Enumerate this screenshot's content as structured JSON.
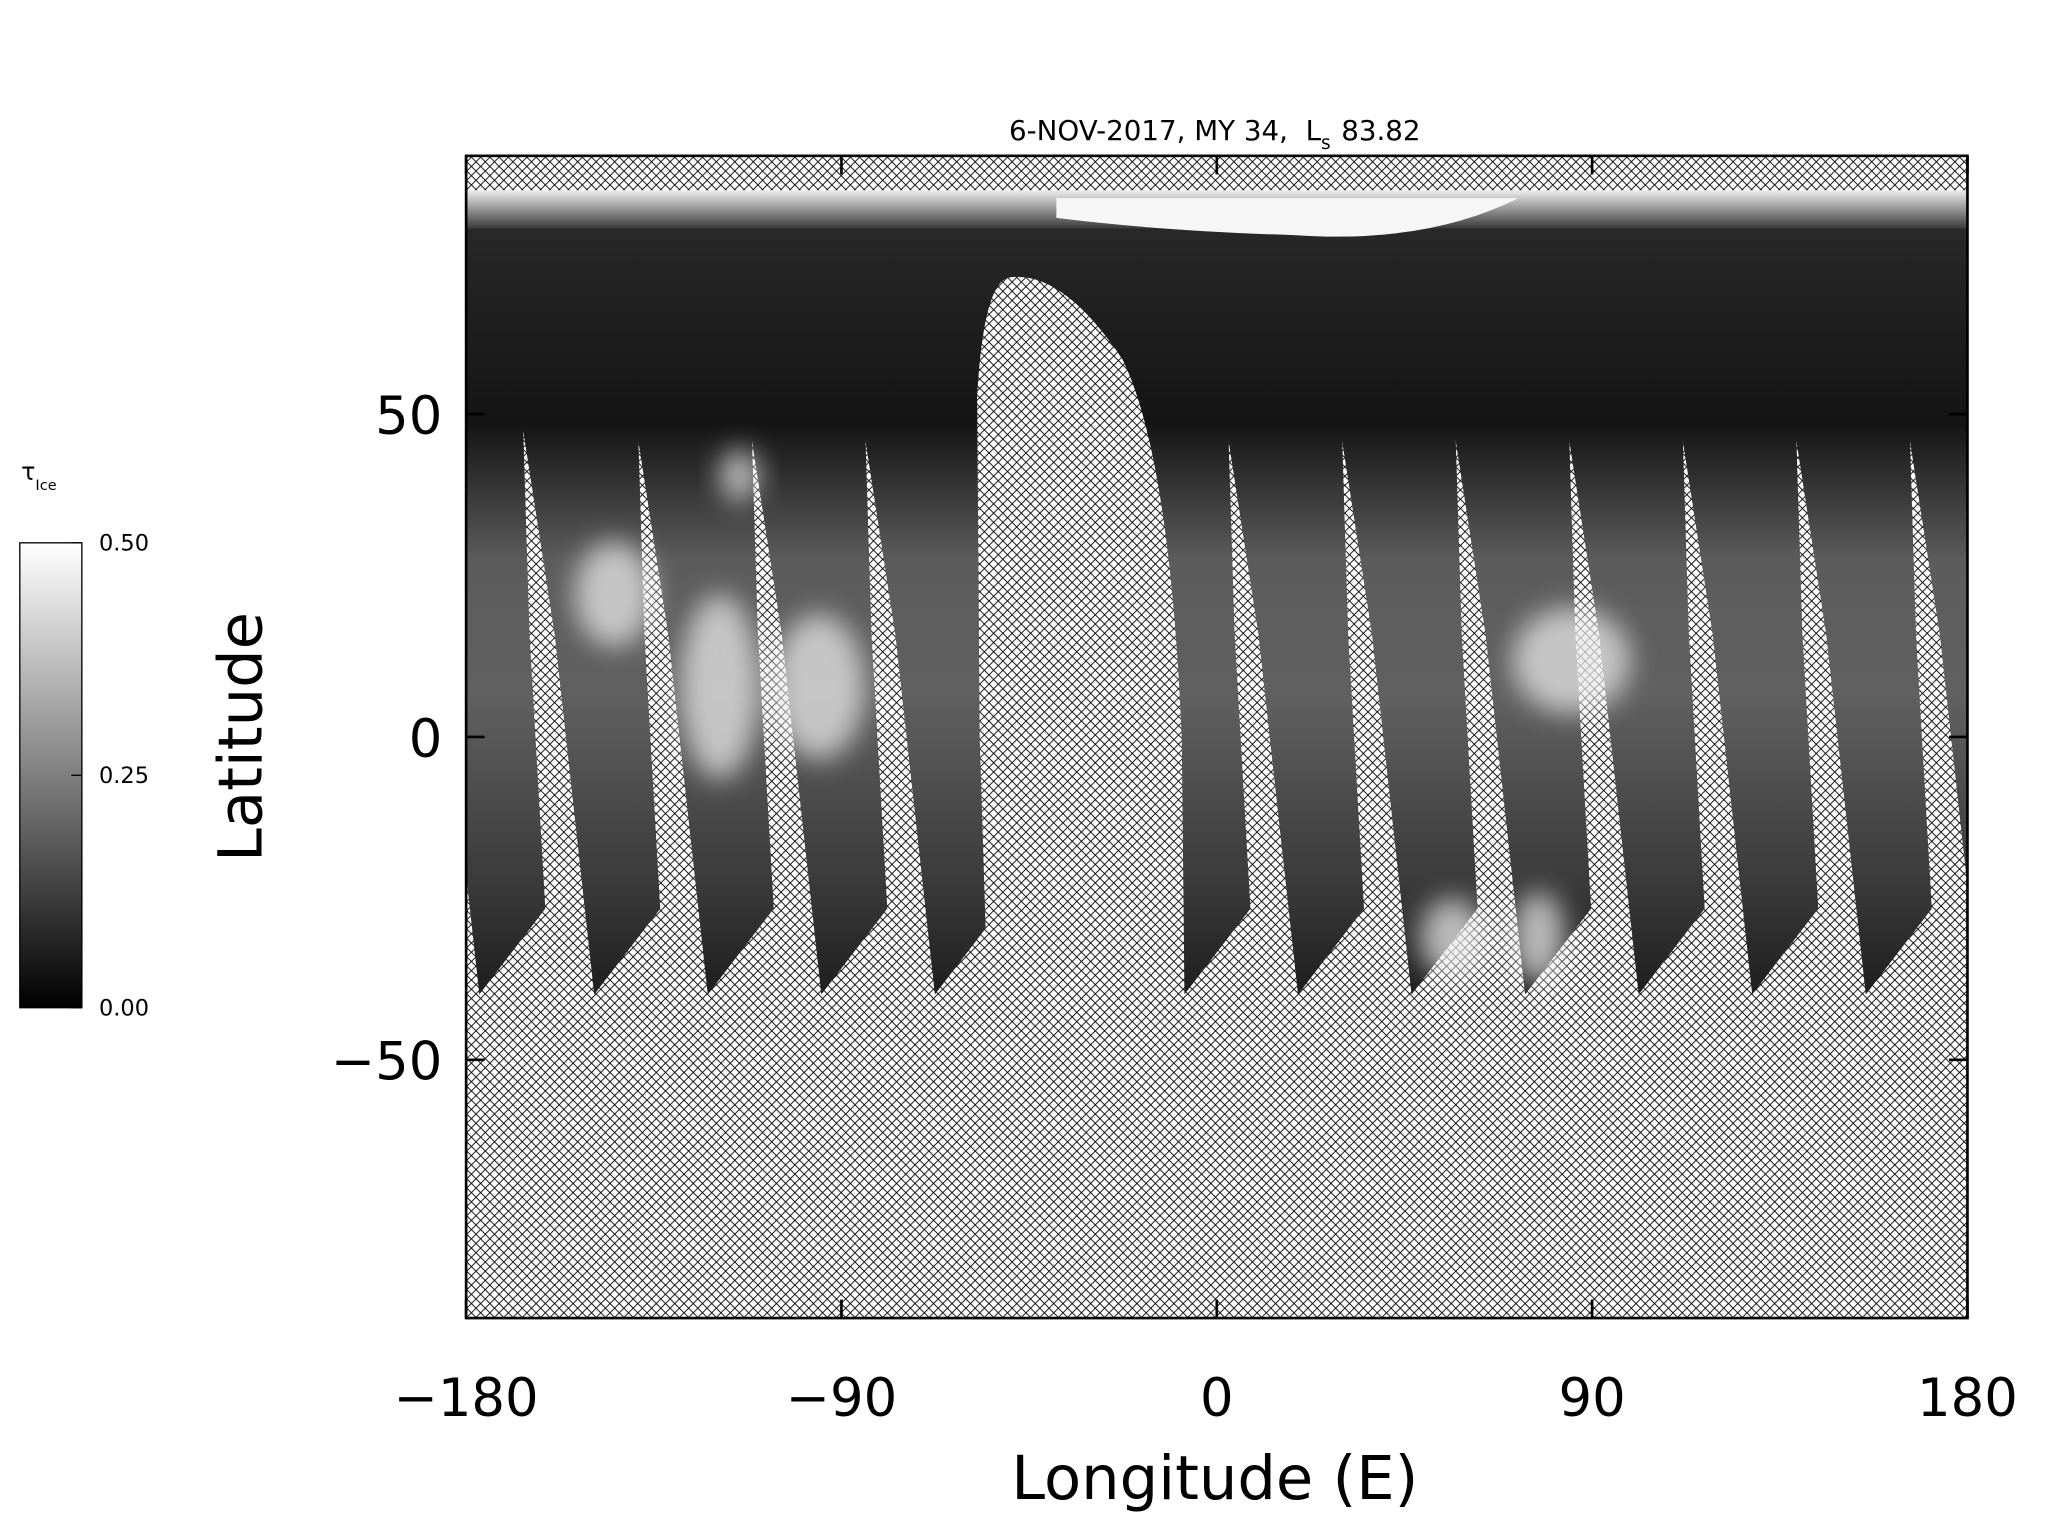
{
  "chart_data": {
    "type": "map",
    "title": "6-NOV-2017, MY 34,  L",
    "title_subscript": "s",
    "title_suffix": "83.82",
    "xlabel": "Longitude (E)",
    "ylabel": "Latitude",
    "xlim": [
      -180,
      180
    ],
    "ylim": [
      -90,
      90
    ],
    "xticks": [
      {
        "value": -180,
        "label": "−180"
      },
      {
        "value": -90,
        "label": "−90"
      },
      0,
      90,
      180
    ],
    "yticks": [
      {
        "value": -50,
        "label": "−50"
      },
      0,
      50
    ],
    "grid": false,
    "colorbar": {
      "label": "τ",
      "label_subscript": "Ice",
      "clim": [
        0,
        0.5
      ],
      "colors": [
        "#000000",
        "#ffffff"
      ],
      "ticks": [
        {
          "value": 0,
          "label": "0.00"
        },
        {
          "value": 0.25,
          "label": "0.25"
        },
        {
          "value": 0.5,
          "label": "0.50"
        }
      ]
    }
  }
}
